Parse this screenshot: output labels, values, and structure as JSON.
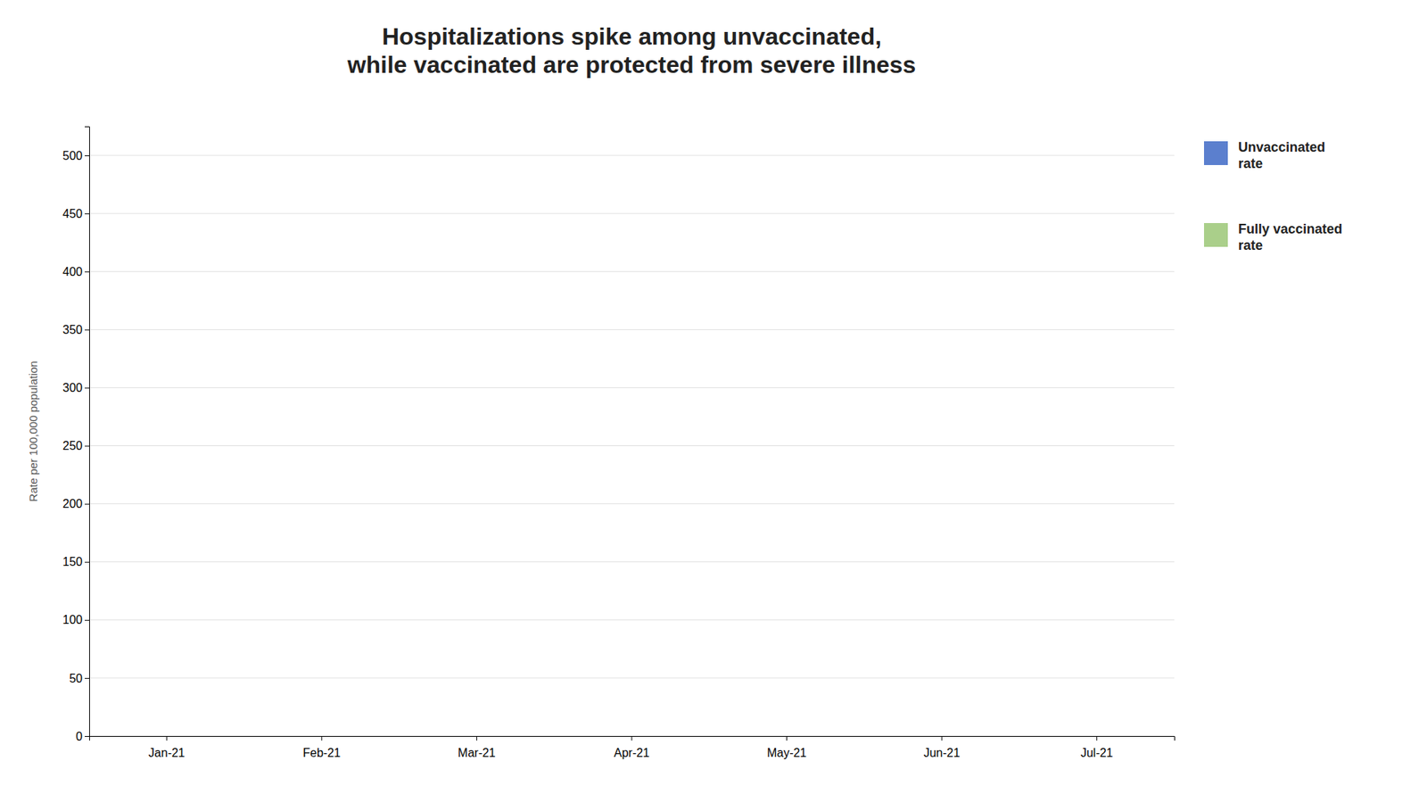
{
  "chart_data": {
    "type": "bar",
    "title": "Hospitalizations spike among unvaccinated,\nwhile vaccinated are protected from severe illness",
    "ylabel": "Rate per 100,000 population",
    "categories": [
      "Jan-21",
      "Feb-21",
      "Mar-21",
      "Apr-21",
      "May-21",
      "Jun-21",
      "Jul-21"
    ],
    "series": [
      {
        "name": "Unvaccinated\nrate",
        "color": "#5b7fce",
        "values": [
          0,
          0,
          0,
          0,
          0,
          0,
          0
        ]
      },
      {
        "name": "Fully vaccinated\nrate",
        "color": "#aacf8a",
        "values": [
          0,
          0,
          0,
          0,
          0,
          0,
          0
        ]
      }
    ],
    "ylim": [
      0,
      525
    ],
    "yticks": [
      0,
      50,
      100,
      150,
      200,
      250,
      300,
      350,
      400,
      450,
      500
    ],
    "grid": true,
    "legend": "right"
  }
}
